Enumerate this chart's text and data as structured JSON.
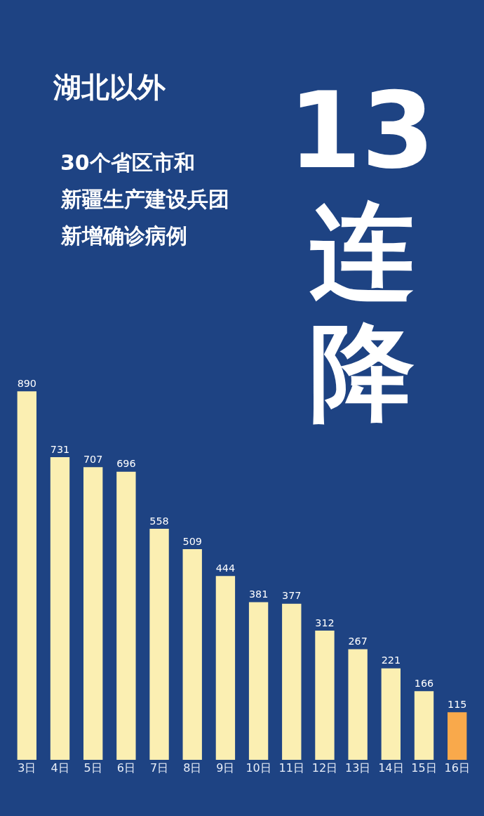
{
  "chart_data": {
    "type": "bar",
    "title": "湖北以外",
    "annotations": [
      "30个省区市和",
      "新疆生产建设兵团",
      "新增确诊病例",
      "13",
      "连",
      "降"
    ],
    "categories": [
      "3日",
      "4日",
      "5日",
      "6日",
      "7日",
      "8日",
      "9日",
      "10日",
      "11日",
      "12日",
      "13日",
      "14日",
      "15日",
      "16日"
    ],
    "values": [
      890,
      731,
      707,
      696,
      558,
      509,
      444,
      381,
      377,
      312,
      267,
      221,
      166,
      115
    ],
    "colors": [
      "#fbefb2",
      "#fbefb2",
      "#fbefb2",
      "#fbefb2",
      "#fbefb2",
      "#fbefb2",
      "#fbefb2",
      "#fbefb2",
      "#fbefb2",
      "#fbefb2",
      "#fbefb2",
      "#fbefb2",
      "#fbefb2",
      "#f9a94b"
    ],
    "data_labels": true,
    "grid": false,
    "legend": false
  }
}
